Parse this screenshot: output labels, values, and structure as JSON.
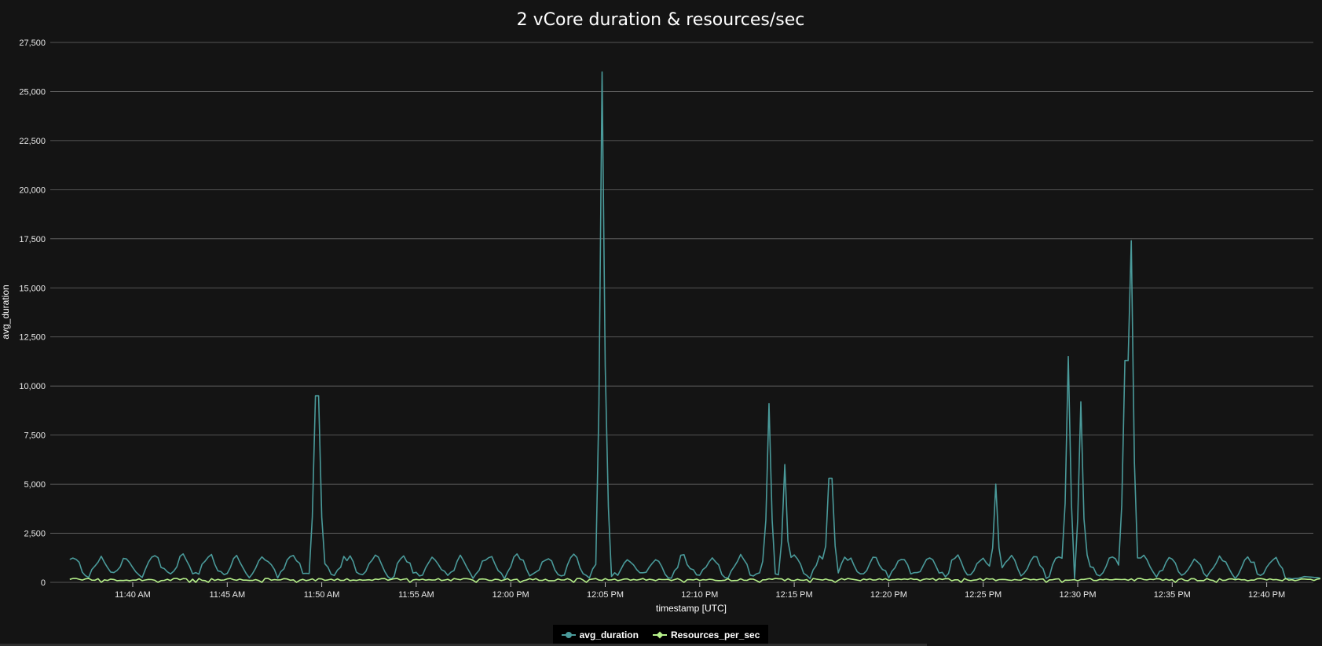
{
  "chart_data": {
    "type": "line",
    "title": "2 vCore duration & resources/sec",
    "xlabel": "timestamp [UTC]",
    "ylabel": "avg_duration",
    "x_time_start": "11:36",
    "x_time_end": "12:42",
    "ylim": [
      0,
      27500
    ],
    "yticks": [
      0,
      2500,
      5000,
      7500,
      10000,
      12500,
      15000,
      17500,
      20000,
      22500,
      25000,
      27500
    ],
    "ytick_labels": [
      "0",
      "2,500",
      "5,000",
      "7,500",
      "10,000",
      "12,500",
      "15,000",
      "17,500",
      "20,000",
      "22,500",
      "25,000",
      "27,500"
    ],
    "xticks": [
      "11:40",
      "11:45",
      "11:50",
      "11:55",
      "12:00",
      "12:05",
      "12:10",
      "12:15",
      "12:20",
      "12:25",
      "12:30",
      "12:35",
      "12:40"
    ],
    "xtick_labels": [
      "11:40 AM",
      "11:45 AM",
      "11:50 AM",
      "11:55 AM",
      "12:00 PM",
      "12:05 PM",
      "12:10 PM",
      "12:15 PM",
      "12:20 PM",
      "12:25 PM",
      "12:30 PM",
      "12:35 PM",
      "12:40 PM"
    ],
    "grid": true,
    "legend_position": "bottom-center",
    "series": [
      {
        "name": "avg_duration",
        "color": "#4a9a9a",
        "marker": "circle",
        "baseline_range": [
          200,
          1400
        ],
        "spikes": [
          {
            "time": "11:49:45",
            "value": 9500
          },
          {
            "time": "12:04:50",
            "value": 26000
          },
          {
            "time": "12:05:00",
            "value": 11000
          },
          {
            "time": "12:13:40",
            "value": 9100
          },
          {
            "time": "12:14:30",
            "value": 6000
          },
          {
            "time": "12:16:55",
            "value": 5300
          },
          {
            "time": "12:25:40",
            "value": 5000
          },
          {
            "time": "12:29:30",
            "value": 11500
          },
          {
            "time": "12:30:10",
            "value": 9200
          },
          {
            "time": "12:32:50",
            "value": 17400
          },
          {
            "time": "12:32:35",
            "value": 11300
          }
        ]
      },
      {
        "name": "Resources_per_sec",
        "color": "#b6f08a",
        "marker": "diamond",
        "baseline_range": [
          80,
          200
        ]
      }
    ]
  },
  "legend": {
    "items": [
      {
        "label": "avg_duration",
        "color": "#4a9a9a",
        "icon": "circle-marker-icon"
      },
      {
        "label": "Resources_per_sec",
        "color": "#b6f08a",
        "icon": "diamond-marker-icon"
      }
    ]
  }
}
